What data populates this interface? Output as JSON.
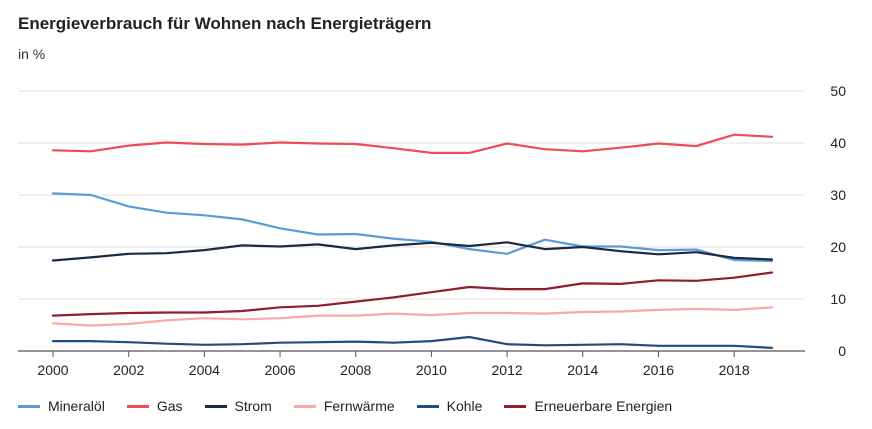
{
  "header": {
    "title": "Energieverbrauch für Wohnen nach Energieträgern",
    "subtitle": "in %"
  },
  "chart_data": {
    "type": "line",
    "title": "Energieverbrauch für Wohnen nach Energieträgern",
    "subtitle": "in %",
    "xlabel": "",
    "ylabel": "",
    "x": [
      2000,
      2001,
      2002,
      2003,
      2004,
      2005,
      2006,
      2007,
      2008,
      2009,
      2010,
      2011,
      2012,
      2013,
      2014,
      2015,
      2016,
      2017,
      2018,
      2019
    ],
    "x_ticks": [
      "2000",
      "2002",
      "2004",
      "2006",
      "2008",
      "2010",
      "2012",
      "2014",
      "2016",
      "2018"
    ],
    "y_ticks": [
      "0",
      "10",
      "20",
      "30",
      "40",
      "50"
    ],
    "ylim": [
      0,
      50
    ],
    "grid": "horizontal",
    "y_axis_position": "right",
    "legend_position": "bottom",
    "series": [
      {
        "name": "Mineralöl",
        "color": "#5b9bd5",
        "values": [
          30.3,
          30.0,
          27.8,
          26.6,
          26.1,
          25.3,
          23.6,
          22.4,
          22.5,
          21.6,
          21.0,
          19.6,
          18.7,
          21.4,
          20.1,
          20.1,
          19.4,
          19.5,
          17.5,
          17.3
        ]
      },
      {
        "name": "Gas",
        "color": "#ef4b55",
        "values": [
          38.6,
          38.4,
          39.5,
          40.1,
          39.8,
          39.7,
          40.1,
          39.9,
          39.8,
          39.0,
          38.1,
          38.1,
          39.9,
          38.8,
          38.4,
          39.1,
          39.9,
          39.4,
          41.6,
          41.2
        ]
      },
      {
        "name": "Strom",
        "color": "#1b2a44",
        "values": [
          17.4,
          18.0,
          18.7,
          18.8,
          19.4,
          20.3,
          20.1,
          20.5,
          19.6,
          20.3,
          20.8,
          20.2,
          20.9,
          19.6,
          20.0,
          19.2,
          18.6,
          19.0,
          17.9,
          17.6
        ]
      },
      {
        "name": "Fernwärme",
        "color": "#f7a8a8",
        "values": [
          5.3,
          4.9,
          5.2,
          5.9,
          6.3,
          6.1,
          6.3,
          6.8,
          6.8,
          7.2,
          6.9,
          7.3,
          7.3,
          7.2,
          7.5,
          7.6,
          7.9,
          8.1,
          7.9,
          8.4
        ]
      },
      {
        "name": "Kohle",
        "color": "#1f4e7a",
        "values": [
          1.9,
          1.9,
          1.7,
          1.4,
          1.2,
          1.3,
          1.6,
          1.7,
          1.8,
          1.6,
          1.9,
          2.7,
          1.3,
          1.1,
          1.2,
          1.3,
          1.0,
          1.0,
          1.0,
          0.6
        ]
      },
      {
        "name": "Erneuerbare Energien",
        "color": "#8f1d2c",
        "values": [
          6.8,
          7.1,
          7.3,
          7.4,
          7.4,
          7.7,
          8.4,
          8.7,
          9.5,
          10.3,
          11.3,
          12.3,
          11.9,
          11.9,
          13.0,
          12.9,
          13.6,
          13.5,
          14.1,
          15.1
        ]
      }
    ]
  }
}
